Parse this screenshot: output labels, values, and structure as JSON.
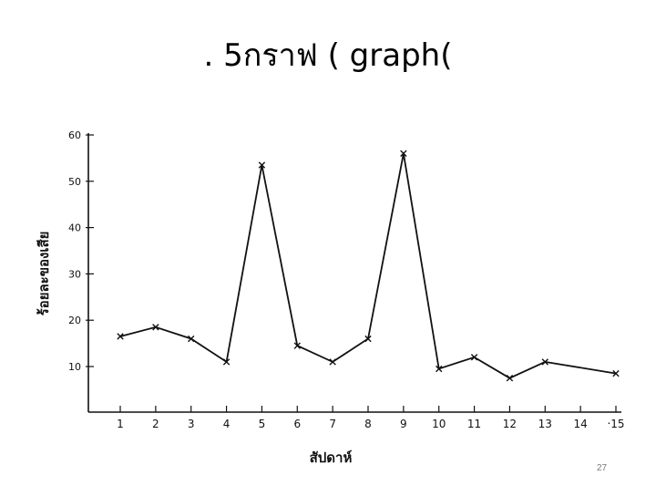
{
  "slide": {
    "title": ". 5กราฟ  ( graph(",
    "page_number": "27"
  },
  "chart_data": {
    "type": "line",
    "x": [
      1,
      2,
      3,
      4,
      5,
      6,
      7,
      8,
      9,
      10,
      11,
      12,
      13,
      15
    ],
    "xticks": [
      1,
      2,
      3,
      4,
      5,
      6,
      7,
      8,
      9,
      10,
      11,
      12,
      13,
      14,
      15
    ],
    "xtick_labels": [
      "1",
      "2",
      "3",
      "4",
      "5",
      "6",
      "7",
      "8",
      "9",
      "10",
      "11",
      "12",
      "13",
      "14",
      "‧15"
    ],
    "series": [
      {
        "values": [
          16.5,
          18.5,
          16,
          11,
          53.5,
          14.5,
          11,
          16,
          56,
          9.5,
          12,
          7.5,
          11,
          8.5
        ]
      }
    ],
    "yticks": [
      10,
      20,
      30,
      40,
      50,
      60
    ],
    "xlabel": "สัปดาห์",
    "ylabel": "ร้อยละของเสีย",
    "xlim": [
      0,
      15
    ],
    "ylim": [
      0,
      60
    ],
    "marker": "x",
    "grid": false,
    "line_color": "#111111"
  }
}
